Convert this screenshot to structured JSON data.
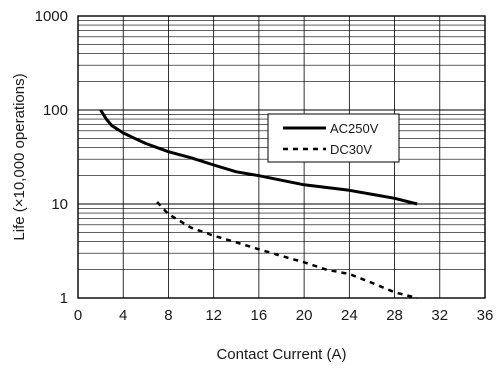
{
  "chart_data": {
    "type": "line",
    "xlabel": "Contact Current (A)",
    "ylabel": "Life (×10,000 operations)",
    "x_scale": "linear",
    "y_scale": "log",
    "xlim": [
      0,
      36
    ],
    "ylim": [
      1,
      1000
    ],
    "x_ticks": [
      0,
      4,
      8,
      12,
      16,
      20,
      24,
      28,
      32,
      36
    ],
    "x_tick_labels": [
      "0",
      "4",
      "8",
      "12",
      "16",
      "20",
      "24",
      "28",
      "32",
      "36"
    ],
    "y_ticks": [
      1,
      10,
      100,
      1000
    ],
    "y_tick_labels": [
      "1",
      "10",
      "100",
      "1000"
    ],
    "grid": true,
    "legend_position": "upper-right",
    "colors": {
      "series": "#000000",
      "grid": "#000000"
    },
    "series": [
      {
        "name": "AC250V",
        "style": "solid",
        "points": [
          [
            2,
            100
          ],
          [
            2.5,
            80
          ],
          [
            3,
            68
          ],
          [
            4,
            57
          ],
          [
            5,
            50
          ],
          [
            6,
            44
          ],
          [
            8,
            36
          ],
          [
            10,
            31
          ],
          [
            12,
            26
          ],
          [
            14,
            22
          ],
          [
            16,
            20
          ],
          [
            20,
            16
          ],
          [
            24,
            14
          ],
          [
            28,
            11.5
          ],
          [
            30,
            10
          ]
        ]
      },
      {
        "name": "DC30V",
        "style": "dashed",
        "points": [
          [
            7,
            10.5
          ],
          [
            8,
            7.8
          ],
          [
            10,
            5.6
          ],
          [
            12,
            4.6
          ],
          [
            14,
            3.9
          ],
          [
            16,
            3.3
          ],
          [
            18,
            2.8
          ],
          [
            20,
            2.4
          ],
          [
            22,
            2.0
          ],
          [
            24,
            1.8
          ],
          [
            26,
            1.45
          ],
          [
            28,
            1.15
          ],
          [
            30,
            1.0
          ]
        ]
      }
    ]
  }
}
